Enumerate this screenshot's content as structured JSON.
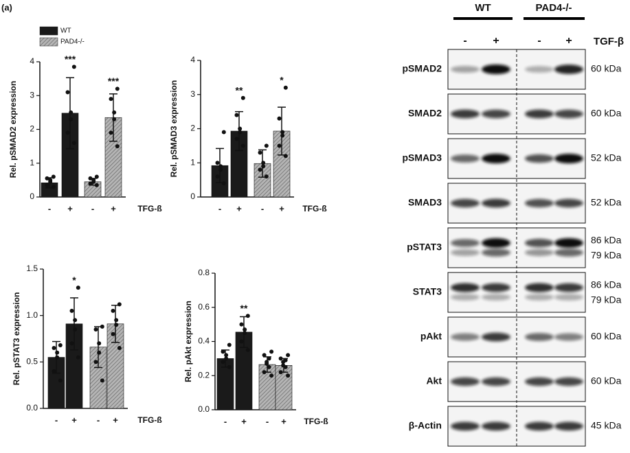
{
  "panel_label": "(a)",
  "legend": {
    "series": [
      {
        "name": "WT",
        "color": "#1a1a1a"
      },
      {
        "name": "PAD4-/-",
        "color": "#9a9a9a"
      }
    ]
  },
  "chart_data": [
    {
      "type": "bar",
      "y_label": "Rel. pSMAD2 expression",
      "x_label": "TFG-ß",
      "categories": [
        "-",
        "+"
      ],
      "ylim": [
        0,
        4
      ],
      "yticks": [
        0,
        1,
        2,
        3,
        4
      ],
      "series": [
        {
          "values": [
            0.42,
            2.48
          ],
          "errors": [
            0.15,
            1.05
          ],
          "significance": [
            null,
            "***"
          ],
          "points": [
            [
              0.3,
              0.35,
              0.45,
              0.5,
              0.55,
              0.6
            ],
            [
              1.6,
              1.9,
              2.3,
              2.5,
              3.1,
              3.85
            ]
          ]
        },
        {
          "values": [
            0.45,
            2.35
          ],
          "errors": [
            0.1,
            0.7
          ],
          "significance": [
            null,
            "***"
          ],
          "points": [
            [
              0.35,
              0.4,
              0.45,
              0.5,
              0.55,
              0.6
            ],
            [
              1.5,
              1.9,
              2.3,
              2.5,
              2.9,
              3.2
            ]
          ]
        }
      ]
    },
    {
      "type": "bar",
      "y_label": "Rel. pSMAD3 expression",
      "x_label": "TFG-ß",
      "categories": [
        "-",
        "+"
      ],
      "ylim": [
        0,
        4
      ],
      "yticks": [
        0,
        1,
        2,
        3,
        4
      ],
      "series": [
        {
          "values": [
            0.92,
            1.93
          ],
          "errors": [
            0.5,
            0.57
          ],
          "significance": [
            null,
            "**"
          ],
          "points": [
            [
              0.4,
              0.6,
              0.8,
              0.9,
              1.0,
              1.9
            ],
            [
              1.5,
              1.7,
              1.9,
              2.0,
              2.4,
              2.9
            ]
          ]
        },
        {
          "values": [
            0.98,
            1.93
          ],
          "errors": [
            0.4,
            0.7
          ],
          "significance": [
            null,
            "*"
          ],
          "points": [
            [
              0.6,
              0.8,
              0.9,
              1.0,
              1.3,
              1.5
            ],
            [
              1.2,
              1.5,
              1.8,
              1.9,
              2.3,
              3.2
            ]
          ]
        }
      ]
    },
    {
      "type": "bar",
      "y_label": "Rel. pSTAT3 expression",
      "x_label": "TFG-ß",
      "categories": [
        "-",
        "+"
      ],
      "ylim": [
        0,
        1.5
      ],
      "yticks": [
        {
          "value": 0,
          "label": "0.0"
        },
        {
          "value": 0.5,
          "label": "0.5"
        },
        {
          "value": 1,
          "label": "1.0"
        },
        {
          "value": 1.5,
          "label": "1.5"
        }
      ],
      "series": [
        {
          "values": [
            0.55,
            0.91
          ],
          "errors": [
            0.17,
            0.28
          ],
          "significance": [
            null,
            "*"
          ],
          "points": [
            [
              0.3,
              0.4,
              0.55,
              0.6,
              0.65,
              0.68
            ],
            [
              0.55,
              0.7,
              0.85,
              0.95,
              1.05,
              1.3
            ]
          ]
        },
        {
          "values": [
            0.66,
            0.91
          ],
          "errors": [
            0.22,
            0.2
          ],
          "significance": [
            null,
            null
          ],
          "points": [
            [
              0.3,
              0.5,
              0.6,
              0.7,
              0.85,
              0.88
            ],
            [
              0.65,
              0.8,
              0.9,
              0.95,
              1.05,
              1.12
            ]
          ]
        }
      ]
    },
    {
      "type": "bar",
      "y_label": "Rel. pAkt expression",
      "x_label": "TFG-ß",
      "categories": [
        "-",
        "+"
      ],
      "ylim": [
        0,
        0.8
      ],
      "yticks": [
        {
          "value": 0,
          "label": "0.0"
        },
        0.2,
        0.4,
        0.6,
        0.8
      ],
      "series": [
        {
          "values": [
            0.3,
            0.455
          ],
          "errors": [
            0.05,
            0.09
          ],
          "significance": [
            null,
            "**"
          ],
          "points": [
            [
              0.25,
              0.28,
              0.3,
              0.32,
              0.34,
              0.38
            ],
            [
              0.35,
              0.4,
              0.45,
              0.47,
              0.5,
              0.55
            ]
          ]
        },
        {
          "values": [
            0.265,
            0.26
          ],
          "errors": [
            0.045,
            0.04
          ],
          "significance": [
            null,
            null
          ],
          "points": [
            [
              0.2,
              0.22,
              0.25,
              0.27,
              0.28,
              0.3,
              0.32,
              0.34
            ],
            [
              0.2,
              0.22,
              0.25,
              0.26,
              0.28,
              0.29,
              0.3,
              0.32
            ]
          ]
        }
      ]
    }
  ],
  "blot": {
    "groups": [
      "WT",
      "PAD4-/-"
    ],
    "treatment": "TGF-β",
    "lanes": [
      "-",
      "+",
      "-",
      "+"
    ],
    "rows": [
      {
        "name": "pSMAD2",
        "sizes": [
          "60 kDa"
        ]
      },
      {
        "name": "SMAD2",
        "sizes": [
          "60 kDa"
        ]
      },
      {
        "name": "pSMAD3",
        "sizes": [
          "52 kDa"
        ]
      },
      {
        "name": "SMAD3",
        "sizes": [
          "52 kDa"
        ]
      },
      {
        "name": "pSTAT3",
        "sizes": [
          "86 kDa",
          "79 kDa"
        ]
      },
      {
        "name": "STAT3",
        "sizes": [
          "86 kDa",
          "79 kDa"
        ]
      },
      {
        "name": "pAkt",
        "sizes": [
          "60 kDa"
        ]
      },
      {
        "name": "Akt",
        "sizes": [
          "60 kDa"
        ]
      },
      {
        "name": "β-Actin",
        "sizes": [
          "45 kDa"
        ]
      }
    ]
  }
}
